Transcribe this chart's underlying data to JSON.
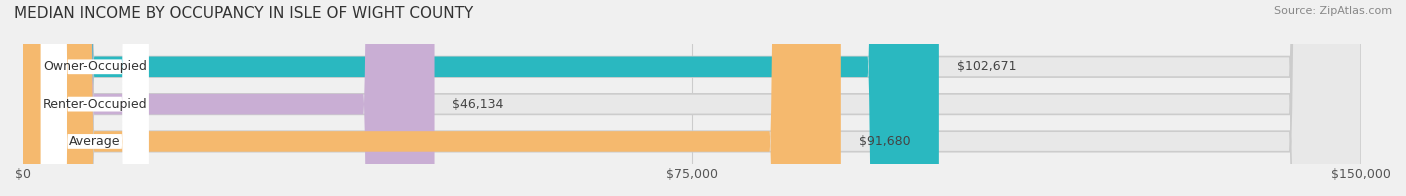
{
  "title": "MEDIAN INCOME BY OCCUPANCY IN ISLE OF WIGHT COUNTY",
  "source": "Source: ZipAtlas.com",
  "categories": [
    "Owner-Occupied",
    "Renter-Occupied",
    "Average"
  ],
  "values": [
    102671,
    46134,
    91680
  ],
  "bar_colors": [
    "#2ab8c0",
    "#c9aed4",
    "#f5b96e"
  ],
  "label_texts": [
    "$102,671",
    "$46,134",
    "$91,680"
  ],
  "xlim": [
    0,
    150000
  ],
  "xticks": [
    0,
    75000,
    150000
  ],
  "xtick_labels": [
    "$0",
    "$75,000",
    "$150,000"
  ],
  "background_color": "#f0f0f0",
  "bar_background_color": "#e8e8e8",
  "title_fontsize": 11,
  "label_fontsize": 9,
  "tick_fontsize": 9
}
